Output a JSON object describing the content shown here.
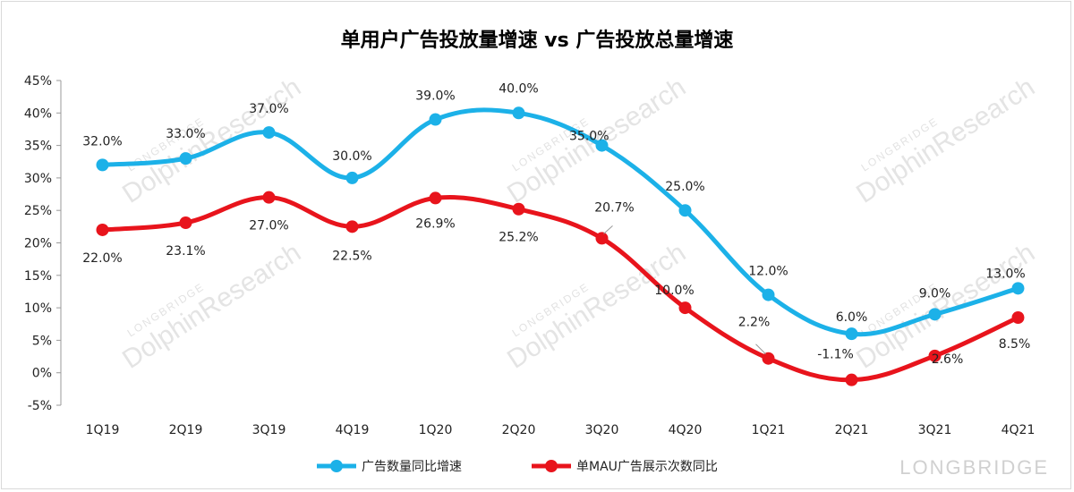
{
  "chart_data": {
    "type": "line",
    "title": "单用户广告投放量增速 vs 广告投放总量增速",
    "categories": [
      "1Q19",
      "2Q19",
      "3Q19",
      "4Q19",
      "1Q20",
      "2Q20",
      "3Q20",
      "4Q20",
      "1Q21",
      "2Q21",
      "3Q21",
      "4Q21"
    ],
    "ylim": [
      -5,
      45
    ],
    "yticks": [
      -5,
      0,
      5,
      10,
      15,
      20,
      25,
      30,
      35,
      40,
      45
    ],
    "ytick_labels": [
      "-5%",
      "0%",
      "5%",
      "10%",
      "15%",
      "20%",
      "25%",
      "30%",
      "35%",
      "40%",
      "45%"
    ],
    "series": [
      {
        "name": "广告数量同比增速",
        "color": "#1cb1e8",
        "values": [
          32.0,
          33.0,
          37.0,
          30.0,
          39.0,
          40.0,
          35.0,
          25.0,
          12.0,
          6.0,
          9.0,
          13.0
        ],
        "labels": [
          "32.0%",
          "33.0%",
          "37.0%",
          "30.0%",
          "39.0%",
          "40.0%",
          "35.0%",
          "25.0%",
          "12.0%",
          "6.0%",
          "9.0%",
          "13.0%"
        ]
      },
      {
        "name": "单MAU广告展示次数同比",
        "color": "#e8141c",
        "values": [
          22.0,
          23.1,
          27.0,
          22.5,
          26.9,
          25.2,
          20.7,
          10.0,
          2.2,
          -1.1,
          2.6,
          8.5
        ],
        "labels": [
          "22.0%",
          "23.1%",
          "27.0%",
          "22.5%",
          "26.9%",
          "25.2%",
          "20.7%",
          "10.0%",
          "2.2%",
          "-1.1%",
          "2.6%",
          "8.5%"
        ]
      }
    ],
    "legend_position": "bottom-center"
  },
  "watermark": {
    "text": "DolphinResearch",
    "small_text": "LONGBRIDGE",
    "brand": "LONGBRIDGE"
  }
}
